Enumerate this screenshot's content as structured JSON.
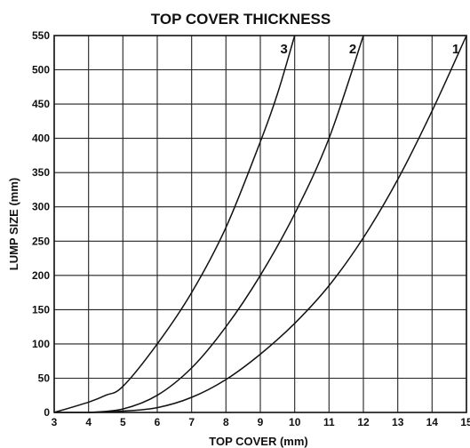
{
  "chart_data": {
    "type": "line",
    "title": "TOP COVER THICKNESS",
    "xlabel": "TOP COVER (mm)",
    "ylabel": "LUMP SIZE (mm)",
    "xlim": [
      3,
      15
    ],
    "ylim": [
      0,
      550
    ],
    "xticks": [
      3,
      4,
      5,
      6,
      7,
      8,
      9,
      10,
      11,
      12,
      13,
      14,
      15
    ],
    "yticks": [
      0,
      50,
      100,
      150,
      200,
      250,
      300,
      350,
      400,
      450,
      500,
      550
    ],
    "grid": true,
    "series": [
      {
        "name": "1",
        "x": [
          4,
          5,
          6,
          7,
          8,
          9,
          10,
          11,
          12,
          13,
          14,
          15
        ],
        "y": [
          0,
          2,
          7,
          22,
          48,
          85,
          130,
          185,
          255,
          340,
          440,
          550
        ]
      },
      {
        "name": "2",
        "x": [
          4,
          5,
          6,
          7,
          8,
          9,
          10,
          11,
          12
        ],
        "y": [
          0,
          5,
          25,
          65,
          125,
          200,
          290,
          400,
          550
        ]
      },
      {
        "name": "3",
        "x": [
          3,
          4,
          4.5,
          5,
          6,
          7,
          8,
          9,
          9.5,
          10
        ],
        "y": [
          0,
          15,
          25,
          38,
          100,
          175,
          270,
          395,
          465,
          550
        ]
      }
    ]
  }
}
